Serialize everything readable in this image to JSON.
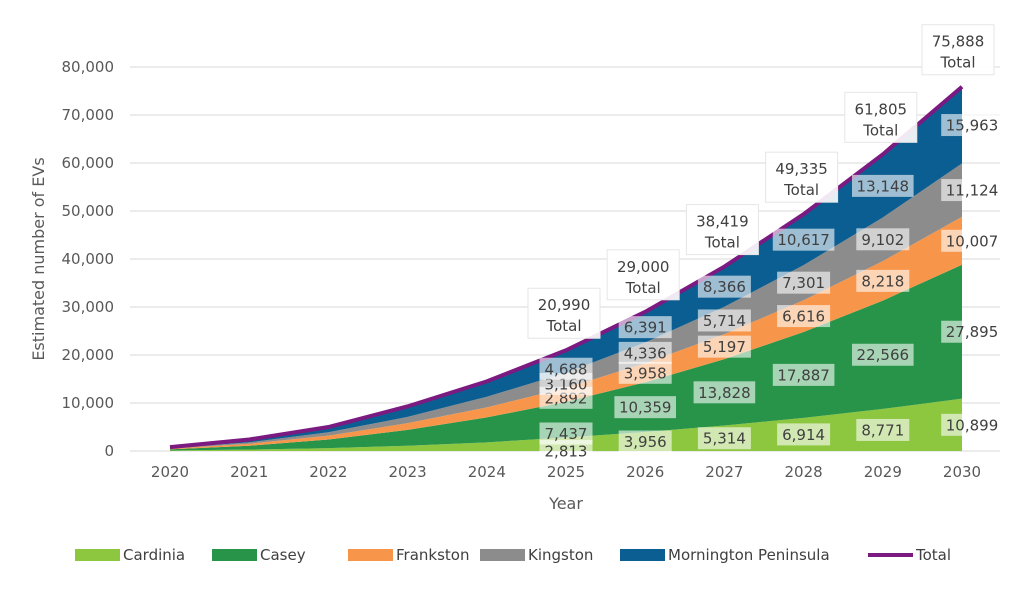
{
  "chart_data": {
    "type": "area",
    "stacked": true,
    "xlabel": "Year",
    "ylabel": "Estimated number of EVs",
    "ylim": [
      0,
      80000
    ],
    "yticks": [
      0,
      10000,
      20000,
      30000,
      40000,
      50000,
      60000,
      70000,
      80000
    ],
    "ytick_labels": [
      "0",
      "10,000",
      "20,000",
      "30,000",
      "40,000",
      "50,000",
      "60,000",
      "70,000",
      "80,000"
    ],
    "grid": true,
    "legend_position": "bottom",
    "x": [
      "2020",
      "2021",
      "2022",
      "2023",
      "2024",
      "2025",
      "2026",
      "2027",
      "2028",
      "2029",
      "2030"
    ],
    "series": [
      {
        "name": "Cardinia",
        "color": "#8dc63f",
        "values": [
          100,
          300,
          600,
          1100,
          1800,
          2813,
          3956,
          5314,
          6914,
          8771,
          10899
        ]
      },
      {
        "name": "Casey",
        "color": "#27944a",
        "values": [
          250,
          800,
          1800,
          3300,
          5200,
          7437,
          10359,
          13828,
          17887,
          22566,
          27895
        ]
      },
      {
        "name": "Frankston",
        "color": "#f7964a",
        "values": [
          150,
          400,
          800,
          1400,
          2100,
          2892,
          3958,
          5197,
          6616,
          8218,
          10007
        ]
      },
      {
        "name": "Kingston",
        "color": "#8c8c8c",
        "values": [
          100,
          300,
          700,
          1300,
          2200,
          3160,
          4336,
          5714,
          7301,
          9102,
          11124
        ]
      },
      {
        "name": "Mornington Peninsula",
        "color": "#0b5e91",
        "values": [
          200,
          600,
          1100,
          2200,
          3200,
          4688,
          6391,
          8366,
          10617,
          13148,
          15963
        ]
      }
    ],
    "total": {
      "name": "Total",
      "color": "#7b1a80",
      "values": [
        800,
        2400,
        5000,
        9300,
        14500,
        20990,
        29000,
        38419,
        49335,
        61805,
        75888
      ]
    },
    "labeled_from_index": 5,
    "total_label_suffix": "Total"
  }
}
